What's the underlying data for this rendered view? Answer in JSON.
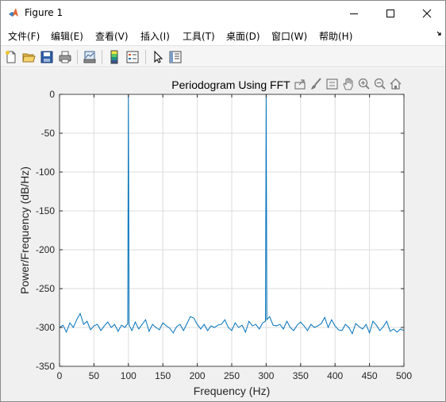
{
  "window": {
    "title": "Figure 1"
  },
  "menu": {
    "items": [
      "文件(F)",
      "编辑(E)",
      "查看(V)",
      "插入(I)",
      "工具(T)",
      "桌面(D)",
      "窗口(W)",
      "帮助(H)"
    ]
  },
  "toolbar": {
    "icons": [
      "new-figure-icon",
      "open-file-icon",
      "save-icon",
      "print-icon",
      "link-plot-icon",
      "insert-colorbar-icon",
      "insert-legend-icon",
      "edit-plot-arrow-icon",
      "property-inspector-icon"
    ]
  },
  "axes_toolbar": {
    "icons": [
      "export-icon",
      "brush-icon",
      "data-tips-icon",
      "pan-hand-icon",
      "zoom-in-icon",
      "zoom-out-icon",
      "home-icon"
    ]
  },
  "colors": {
    "line": "#0072bd",
    "grid": "#dcdcdc",
    "figure_bg": "#f0f0f0"
  },
  "chart_data": {
    "type": "line",
    "title": "Periodogram Using FFT",
    "xlabel": "Frequency (Hz)",
    "ylabel": "Power/Frequency (dB/Hz)",
    "xlim": [
      0,
      500
    ],
    "ylim": [
      -350,
      0
    ],
    "x_ticks": [
      0,
      50,
      100,
      150,
      200,
      250,
      300,
      350,
      400,
      450,
      500
    ],
    "y_ticks": [
      0,
      -50,
      -100,
      -150,
      -200,
      -250,
      -300,
      -350
    ],
    "grid": true,
    "peaks": [
      {
        "x": 100,
        "y": 0
      },
      {
        "x": 300,
        "y": 0
      }
    ],
    "noise_floor": {
      "x": [
        0,
        5,
        10,
        15,
        20,
        25,
        30,
        35,
        40,
        45,
        50,
        55,
        60,
        65,
        70,
        75,
        80,
        85,
        90,
        95,
        99,
        101,
        105,
        110,
        115,
        120,
        125,
        130,
        135,
        140,
        145,
        150,
        155,
        160,
        165,
        170,
        175,
        180,
        185,
        190,
        195,
        200,
        205,
        210,
        215,
        220,
        225,
        230,
        235,
        240,
        245,
        250,
        255,
        260,
        265,
        270,
        275,
        280,
        285,
        290,
        295,
        299,
        301,
        305,
        310,
        315,
        320,
        325,
        330,
        335,
        340,
        345,
        350,
        355,
        360,
        365,
        370,
        375,
        380,
        385,
        390,
        395,
        400,
        405,
        410,
        415,
        420,
        425,
        430,
        435,
        440,
        445,
        450,
        455,
        460,
        465,
        470,
        475,
        480,
        485,
        490,
        495,
        500
      ],
      "y": [
        -300,
        -297,
        -306,
        -294,
        -300,
        -290,
        -282,
        -296,
        -292,
        -303,
        -298,
        -296,
        -304,
        -298,
        -293,
        -300,
        -296,
        -305,
        -297,
        -300,
        -295,
        -297,
        -304,
        -293,
        -302,
        -296,
        -290,
        -305,
        -296,
        -300,
        -303,
        -294,
        -298,
        -301,
        -307,
        -299,
        -296,
        -304,
        -295,
        -286,
        -288,
        -296,
        -302,
        -296,
        -304,
        -298,
        -300,
        -297,
        -296,
        -290,
        -300,
        -304,
        -294,
        -300,
        -297,
        -306,
        -292,
        -298,
        -296,
        -302,
        -294,
        -292,
        -290,
        -286,
        -297,
        -298,
        -296,
        -302,
        -292,
        -300,
        -304,
        -297,
        -293,
        -298,
        -304,
        -296,
        -300,
        -298,
        -295,
        -287,
        -300,
        -290,
        -298,
        -303,
        -304,
        -296,
        -300,
        -308,
        -295,
        -299,
        -302,
        -296,
        -307,
        -292,
        -297,
        -304,
        -299,
        -292,
        -305,
        -302,
        -306,
        -302,
        -304
      ]
    }
  }
}
